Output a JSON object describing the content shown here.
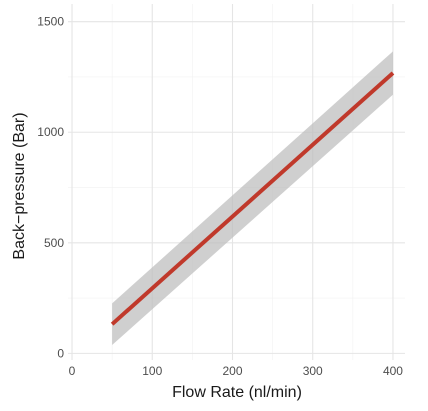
{
  "chart_data": {
    "type": "line",
    "xlabel": "Flow Rate (nl/min)",
    "ylabel": "Back−pressure (Bar)",
    "xlim": [
      -5,
      415
    ],
    "ylim": [
      -30,
      1580
    ],
    "x_ticks": [
      0,
      100,
      200,
      300,
      400
    ],
    "x_tick_labels": [
      "0",
      "100",
      "200",
      "300",
      "400"
    ],
    "y_ticks": [
      0,
      500,
      1000,
      1500
    ],
    "y_tick_labels": [
      "0",
      "500",
      "1000",
      "1500"
    ],
    "grid": true,
    "legend": "none",
    "series": [
      {
        "x": [
          50,
          400
        ],
        "y": [
          132,
          1268
        ],
        "ci_lower": [
          38,
          1170
        ],
        "ci_upper": [
          226,
          1366
        ],
        "color": "#c0392b",
        "band_color": "#bdbdbd"
      }
    ]
  },
  "colors": {
    "background": "#ffffff",
    "grid_major": "#e5e5e5",
    "grid_minor": "#f2f2f2",
    "tick_text": "#4d4d4d",
    "axis_title": "#1a1a1a"
  }
}
